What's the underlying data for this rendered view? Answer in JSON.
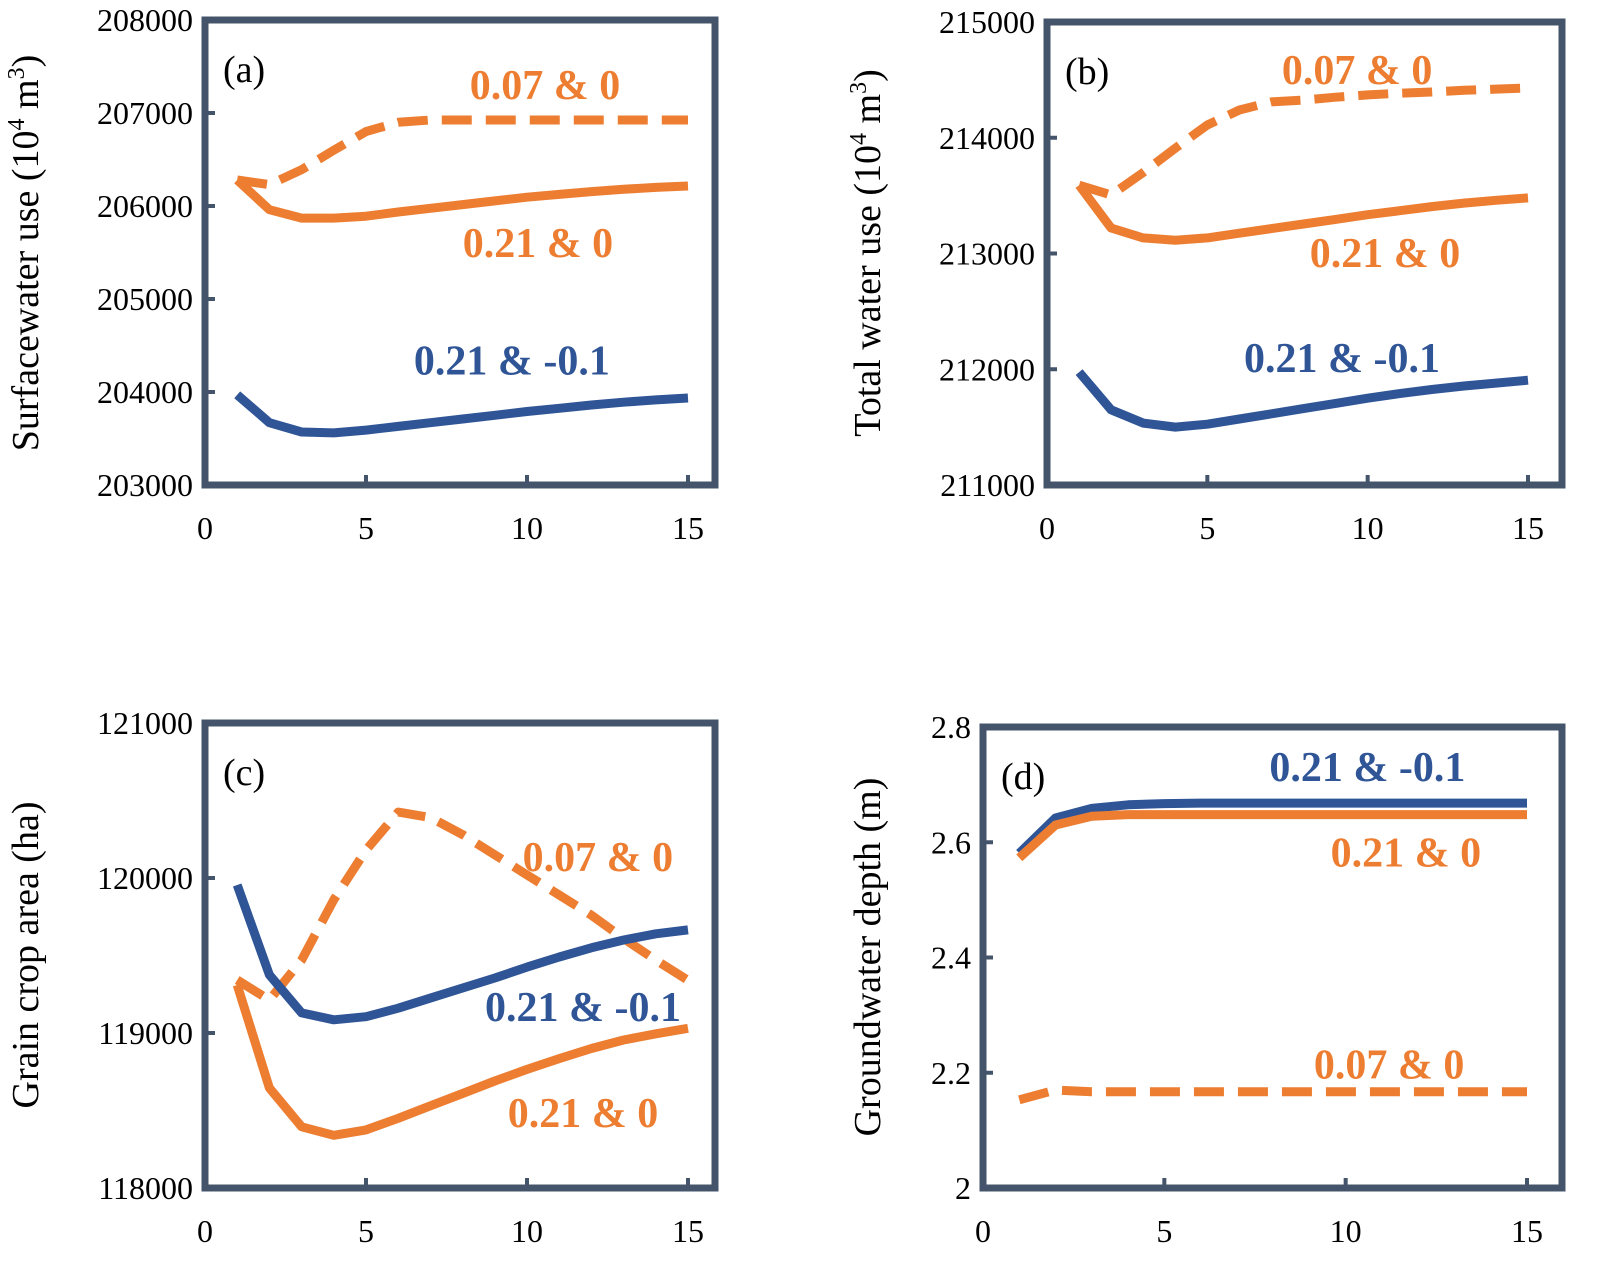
{
  "colors": {
    "orange": "#ED7D31",
    "blue": "#2F5597",
    "frame": "#44546A",
    "text": "#000000"
  },
  "chart_data": [
    {
      "type": "line",
      "panel_label": "(a)",
      "ylabel_main": "Surfacewater use (10",
      "ylabel_sup": "4",
      "ylabel_unit": " m",
      "ylabel_sup2": "3",
      "ylabel_end": ")",
      "xlim": [
        0,
        15
      ],
      "ylim": [
        203000,
        208000
      ],
      "xticks": [
        0,
        5,
        10,
        15
      ],
      "yticks": [
        203000,
        204000,
        205000,
        206000,
        207000,
        208000
      ],
      "x": [
        1,
        2,
        3,
        4,
        5,
        6,
        7,
        8,
        9,
        10,
        11,
        12,
        13,
        14,
        15
      ],
      "series": [
        {
          "name": "0.07 & 0",
          "color": "orange",
          "dash": true,
          "values": [
            206280,
            206230,
            206390,
            206600,
            206800,
            206900,
            206925,
            206925,
            206925,
            206925,
            206925,
            206925,
            206925,
            206925,
            206925
          ],
          "label_at": [
            10.56,
            207300
          ]
        },
        {
          "name": "0.21 & 0",
          "color": "orange",
          "dash": false,
          "values": [
            206280,
            205960,
            205870,
            205870,
            205890,
            205935,
            205975,
            206015,
            206055,
            206095,
            206125,
            206155,
            206180,
            206200,
            206215
          ],
          "label_at": [
            10.34,
            205600
          ]
        },
        {
          "name": "0.21 & -0.1",
          "color": "blue",
          "dash": false,
          "values": [
            203970,
            203670,
            203570,
            203560,
            203590,
            203630,
            203670,
            203710,
            203750,
            203790,
            203825,
            203860,
            203890,
            203915,
            203935
          ],
          "label_at": [
            9.53,
            204340
          ]
        }
      ]
    },
    {
      "type": "line",
      "panel_label": "(b)",
      "ylabel_main": "Total water use (10",
      "ylabel_sup": "4",
      "ylabel_unit": " m",
      "ylabel_sup2": "3",
      "ylabel_end": ")",
      "xlim": [
        0,
        15
      ],
      "ylim": [
        211000,
        215000
      ],
      "xticks": [
        0,
        5,
        10,
        15
      ],
      "yticks": [
        211000,
        212000,
        213000,
        214000,
        215000
      ],
      "x": [
        1,
        2,
        3,
        4,
        5,
        6,
        7,
        8,
        9,
        10,
        11,
        12,
        13,
        14,
        15
      ],
      "series": [
        {
          "name": "0.07 & 0",
          "color": "orange",
          "dash": true,
          "values": [
            213590,
            213505,
            213700,
            213910,
            214110,
            214240,
            214310,
            214325,
            214350,
            214370,
            214385,
            214395,
            214410,
            214420,
            214430
          ],
          "label_at": [
            9.67,
            214585
          ]
        },
        {
          "name": "0.21 & 0",
          "color": "orange",
          "dash": false,
          "values": [
            213590,
            213220,
            213135,
            213115,
            213135,
            213175,
            213215,
            213255,
            213295,
            213335,
            213370,
            213405,
            213435,
            213460,
            213480
          ],
          "label_at": [
            10.54,
            213005
          ]
        },
        {
          "name": "0.21 & -0.1",
          "color": "blue",
          "dash": false,
          "values": [
            211975,
            211650,
            211535,
            211500,
            211525,
            211570,
            211615,
            211660,
            211705,
            211750,
            211790,
            211825,
            211855,
            211880,
            211905
          ],
          "label_at": [
            9.2,
            212098
          ]
        }
      ]
    },
    {
      "type": "line",
      "panel_label": "(c)",
      "ylabel_main": "Grain crop area (ha)",
      "xlim": [
        0,
        15
      ],
      "ylim": [
        118000,
        121000
      ],
      "xticks": [
        0,
        5,
        10,
        15
      ],
      "yticks": [
        118000,
        119000,
        120000,
        121000
      ],
      "x": [
        1,
        2,
        3,
        4,
        5,
        6,
        7,
        8,
        9,
        10,
        11,
        12,
        13,
        14,
        15
      ],
      "series": [
        {
          "name": "0.07 & 0",
          "color": "orange",
          "dash": true,
          "values": [
            119342,
            119213,
            119470,
            119860,
            120180,
            120425,
            120390,
            120280,
            120150,
            120020,
            119890,
            119760,
            119610,
            119470,
            119340
          ],
          "label_at": [
            12.2,
            120135
          ]
        },
        {
          "name": "0.21 & -0.1",
          "color": "blue",
          "dash": false,
          "values": [
            119955,
            119375,
            119130,
            119085,
            119105,
            119160,
            119225,
            119290,
            119355,
            119425,
            119490,
            119550,
            119600,
            119640,
            119665
          ],
          "label_at": [
            11.74,
            119168
          ]
        },
        {
          "name": "0.21 & 0",
          "color": "orange",
          "dash": false,
          "values": [
            119310,
            118645,
            118395,
            118340,
            118375,
            118450,
            118530,
            118610,
            118690,
            118765,
            118835,
            118900,
            118955,
            118995,
            119030
          ],
          "label_at": [
            11.74,
            118484
          ]
        }
      ]
    },
    {
      "type": "line",
      "panel_label": "(d)",
      "ylabel_main": "Groundwater depth (m)",
      "xlim": [
        0,
        15
      ],
      "ylim": [
        2.0,
        2.8
      ],
      "xticks": [
        0,
        5,
        10,
        15
      ],
      "yticks": [
        2,
        2.2,
        2.4,
        2.6,
        2.8
      ],
      "ytick_labels": [
        "2",
        "2.2",
        "2.4",
        "2.6",
        "2.8"
      ],
      "x": [
        1,
        2,
        3,
        4,
        5,
        6,
        7,
        8,
        9,
        10,
        11,
        12,
        13,
        14,
        15
      ],
      "series": [
        {
          "name": "0.21 & -0.1",
          "color": "blue",
          "dash": false,
          "values": [
            2.581,
            2.642,
            2.659,
            2.665,
            2.667,
            2.668,
            2.668,
            2.668,
            2.668,
            2.668,
            2.668,
            2.668,
            2.668,
            2.668,
            2.668
          ],
          "label_at": [
            10.6,
            2.731
          ]
        },
        {
          "name": "0.21 & 0",
          "color": "orange",
          "dash": false,
          "values": [
            2.573,
            2.63,
            2.645,
            2.648,
            2.648,
            2.648,
            2.648,
            2.648,
            2.648,
            2.648,
            2.648,
            2.648,
            2.648,
            2.648,
            2.648
          ],
          "label_at": [
            11.66,
            2.582
          ]
        },
        {
          "name": "0.07 & 0",
          "color": "orange",
          "dash": true,
          "values": [
            2.153,
            2.17,
            2.167,
            2.167,
            2.167,
            2.167,
            2.167,
            2.167,
            2.167,
            2.167,
            2.167,
            2.167,
            2.167,
            2.167,
            2.167
          ],
          "label_at": [
            11.2,
            2.214
          ]
        }
      ]
    }
  ]
}
